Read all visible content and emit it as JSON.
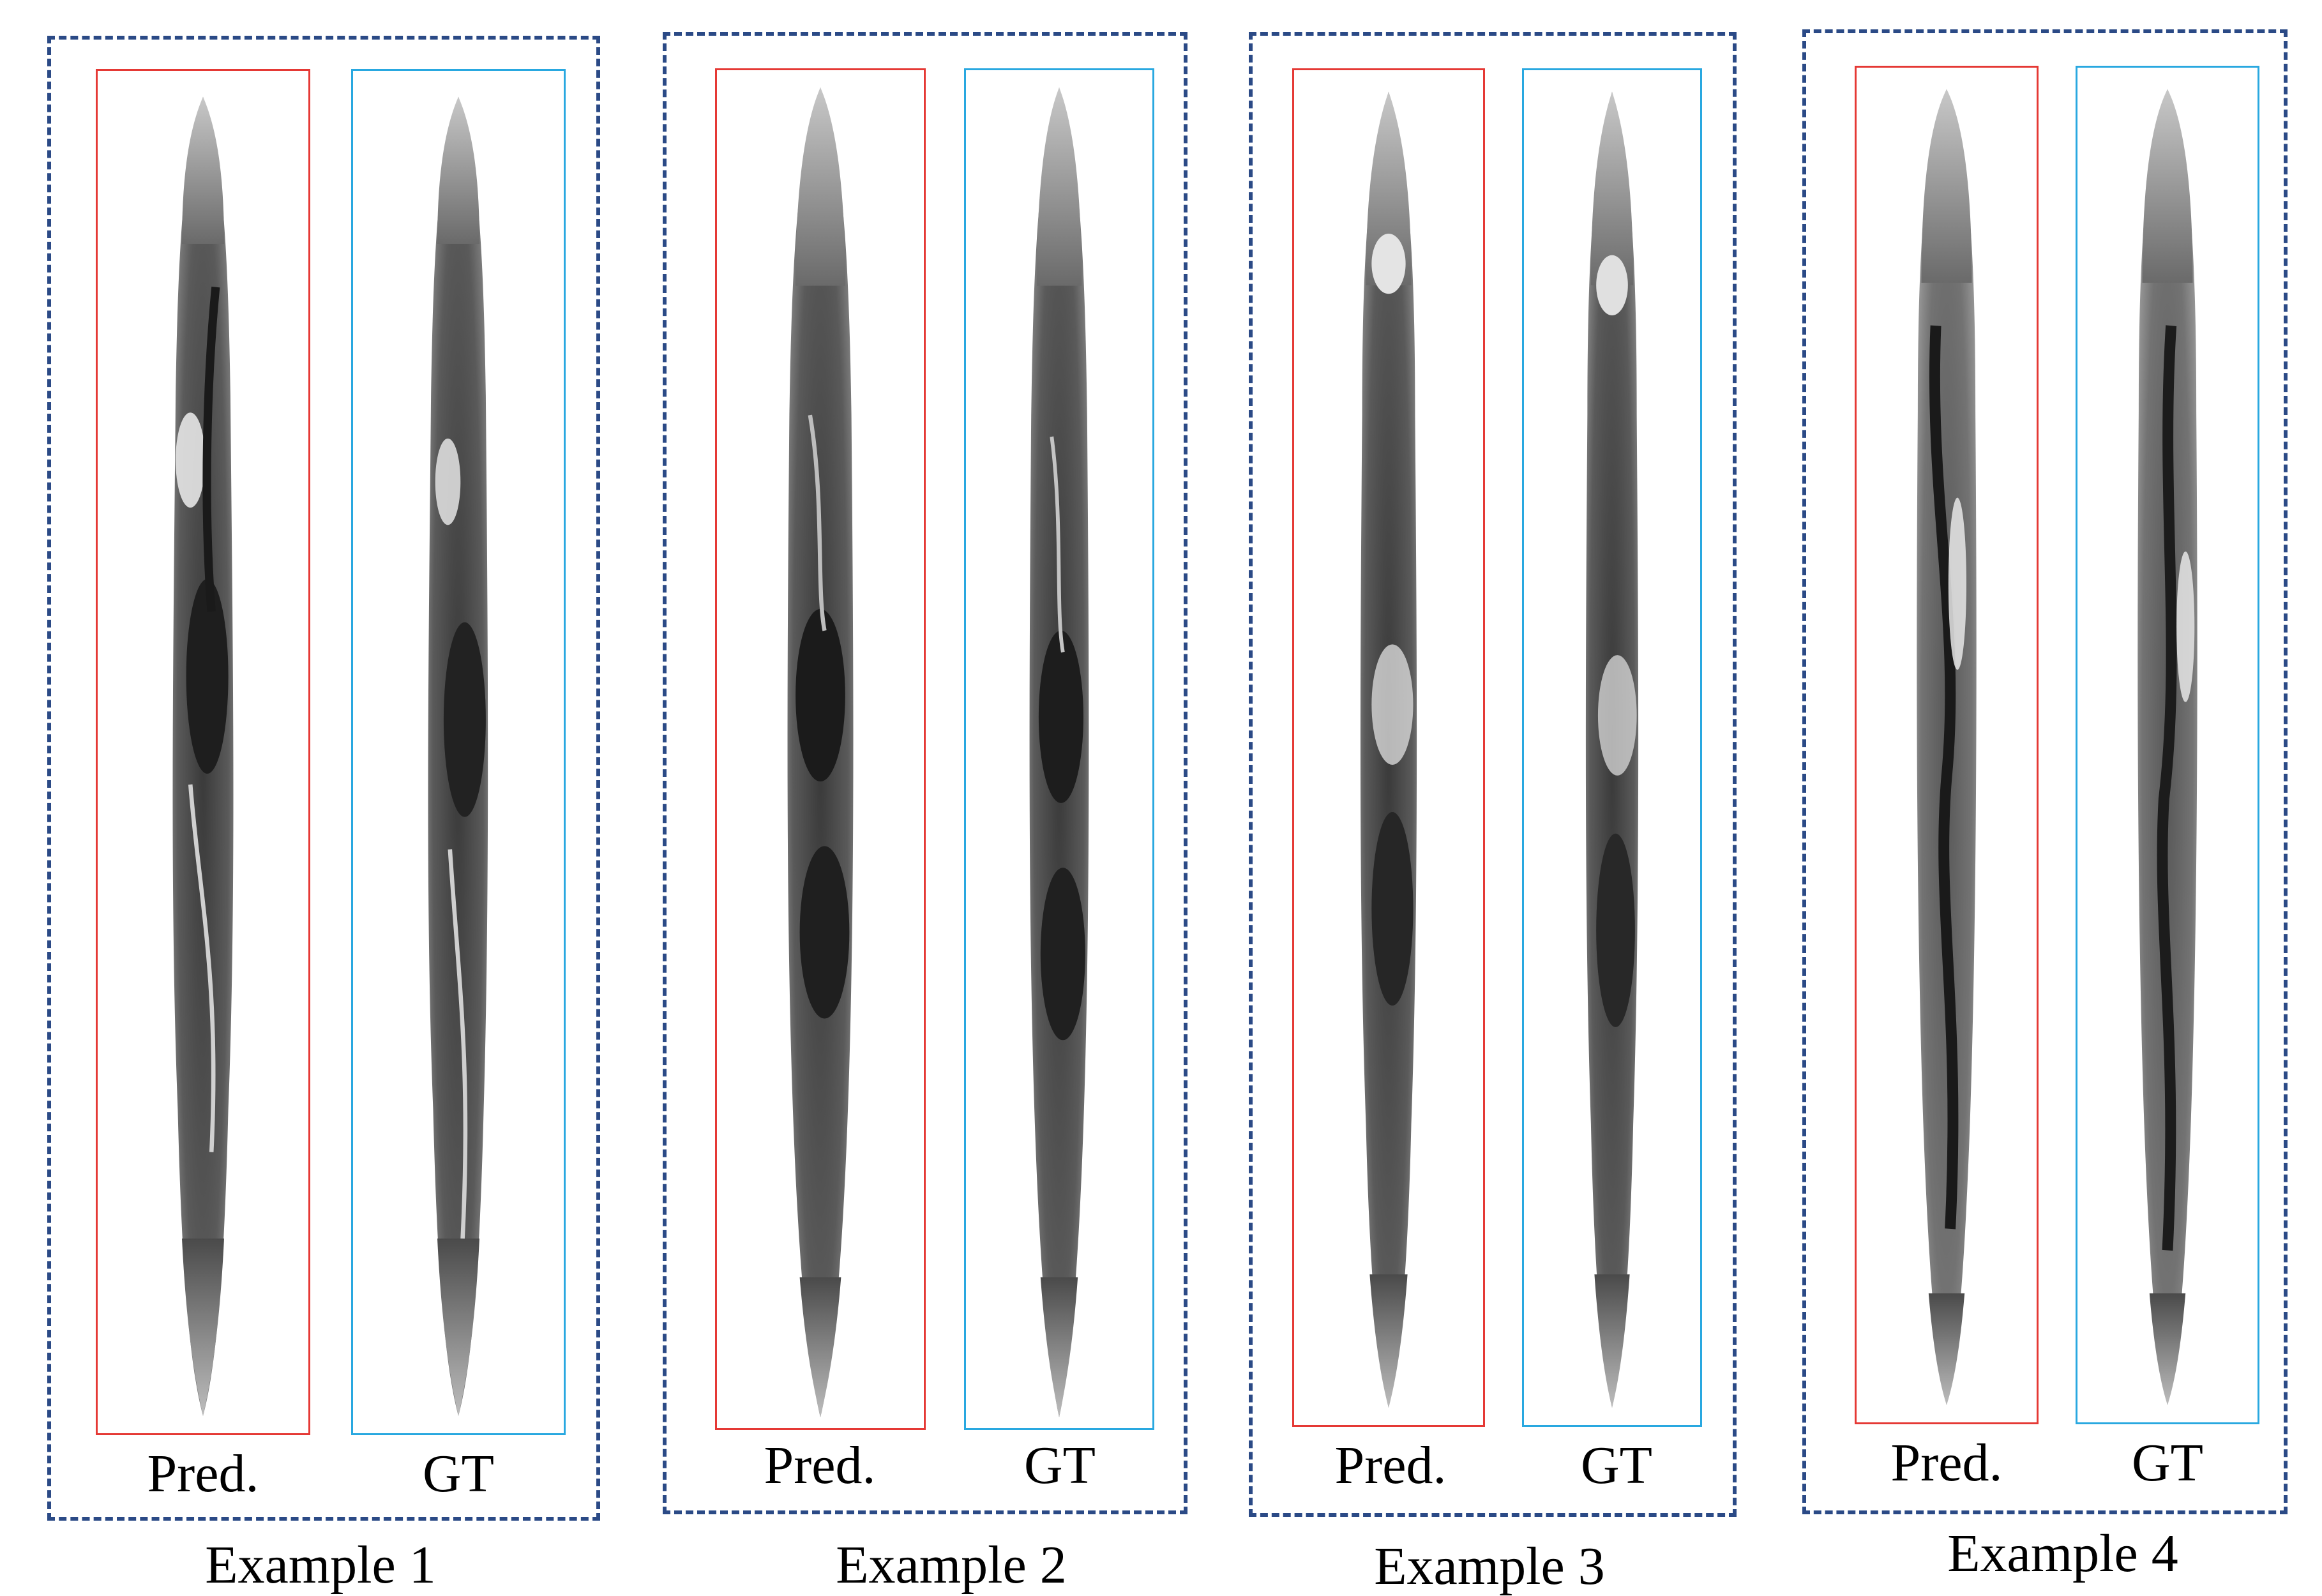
{
  "figure": {
    "examples": [
      {
        "caption": "Example 1",
        "pred_label": "Pred.",
        "gt_label": "GT"
      },
      {
        "caption": "Example 2",
        "pred_label": "Pred.",
        "gt_label": "GT"
      },
      {
        "caption": "Example 3",
        "pred_label": "Pred.",
        "gt_label": "GT"
      },
      {
        "caption": "Example 4",
        "pred_label": "Pred.",
        "gt_label": "GT"
      }
    ],
    "colors": {
      "group_border": "#2b4a86",
      "pred_border": "#e53935",
      "gt_border": "#29a8e0"
    }
  }
}
